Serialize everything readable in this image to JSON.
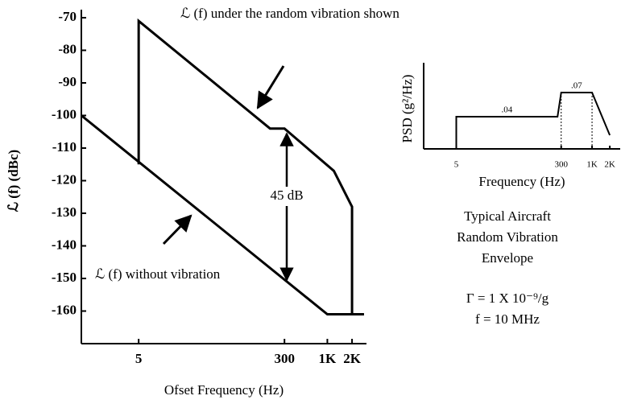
{
  "chart_data": [
    {
      "type": "line",
      "xlabel": "Ofset Frequency (Hz)",
      "ylabel": "ℒ (f) (dBc)",
      "xscale": "log",
      "xlim": [
        1,
        3000
      ],
      "ylim": [
        -170,
        -70
      ],
      "xticks": [
        5,
        300,
        {
          "value": 1000,
          "label": "1K"
        },
        {
          "value": 2000,
          "label": "2K"
        }
      ],
      "yticks": [
        -70,
        -80,
        -90,
        -100,
        -110,
        -120,
        -130,
        -140,
        -150,
        -160
      ],
      "series": [
        {
          "color": "#000000",
          "x": [
            1,
            1000,
            2800
          ],
          "values": [
            -100,
            -161,
            -161
          ]
        },
        {
          "color": "#000000",
          "x": [
            5,
            5,
            200,
            300,
            1200,
            2000,
            2000
          ],
          "values": [
            -115,
            -71,
            -104,
            -104,
            -117,
            -128,
            -161
          ]
        }
      ],
      "annotations": [
        {
          "text": "ℒ (f) under the random vibration shown"
        },
        {
          "text": "ℒ (f) without vibration"
        },
        {
          "text": "45 dB"
        }
      ]
    },
    {
      "type": "line",
      "xlabel": "Frequency (Hz)",
      "ylabel": "PSD (g²/Hz)",
      "xscale": "log",
      "xlim": [
        1.4,
        3000
      ],
      "ylim": [
        0,
        0.1
      ],
      "xticks": [
        5,
        300,
        {
          "value": 1000,
          "label": "1K"
        },
        {
          "value": 2000,
          "label": "2K"
        }
      ],
      "series": [
        {
          "color": "#000000",
          "x": [
            5,
            5,
            260,
            300,
            1000,
            2000
          ],
          "values": [
            0,
            0.04,
            0.04,
            0.07,
            0.07,
            0.017
          ],
          "value_labels": [
            null,
            ".04",
            null,
            ".07",
            null,
            null
          ]
        }
      ]
    }
  ],
  "caption": [
    "Typical Aircraft",
    "Random Vibration",
    "Envelope"
  ],
  "parameters": [
    "Γ = 1 X 10⁻⁹/g",
    "f = 10 MHz"
  ]
}
